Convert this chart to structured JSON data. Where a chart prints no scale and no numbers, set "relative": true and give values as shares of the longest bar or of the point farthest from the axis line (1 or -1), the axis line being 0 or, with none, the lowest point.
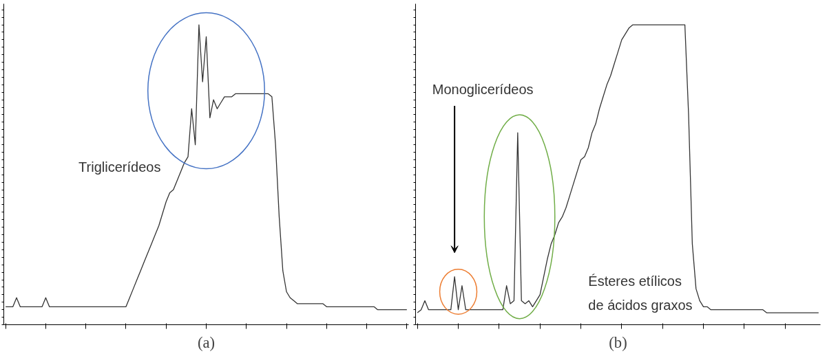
{
  "chart_data": [
    {
      "type": "line",
      "title": "(a)",
      "relative": true,
      "grid": false,
      "categories": [
        null,
        null,
        null,
        null,
        null,
        null,
        null,
        null,
        null,
        null,
        null,
        null,
        null,
        null,
        null,
        null,
        null,
        null,
        null,
        null,
        null,
        null,
        null,
        null,
        null,
        null,
        null,
        null,
        null,
        null,
        null,
        null,
        null,
        null,
        null,
        null,
        null,
        null,
        null,
        null,
        null,
        null,
        null,
        null,
        null,
        null,
        null,
        null,
        null,
        null,
        null,
        null,
        null,
        null,
        null,
        null,
        null,
        null,
        null,
        null,
        null,
        null,
        null,
        null,
        null,
        null,
        null,
        null,
        null,
        null,
        null,
        null,
        null,
        null,
        null,
        null,
        null,
        null,
        null,
        null,
        null,
        null,
        null,
        null,
        null,
        null,
        null,
        null,
        null,
        null,
        null,
        null,
        null,
        null,
        null,
        null,
        null,
        null,
        null,
        null,
        null,
        null,
        null,
        null,
        null,
        null,
        null,
        null,
        null,
        null,
        null
      ],
      "series": [
        {
          "color": "#333333",
          "values": [
            0.06,
            0.06,
            0.06,
            0.09,
            0.06,
            0.06,
            0.06,
            0.06,
            0.06,
            0.06,
            0.06,
            0.09,
            0.06,
            0.06,
            0.06,
            0.06,
            0.06,
            0.06,
            0.06,
            0.06,
            0.06,
            0.06,
            0.06,
            0.06,
            0.06,
            0.06,
            0.06,
            0.06,
            0.06,
            0.06,
            0.06,
            0.06,
            0.06,
            0.06,
            0.09,
            0.12,
            0.15,
            0.18,
            0.21,
            0.24,
            0.27,
            0.3,
            0.33,
            0.37,
            0.41,
            0.44,
            0.45,
            0.48,
            0.51,
            0.54,
            0.56,
            0.72,
            0.6,
            1.0,
            0.81,
            0.96,
            0.69,
            0.75,
            0.72,
            0.74,
            0.76,
            0.76,
            0.76,
            0.77,
            0.77,
            0.77,
            0.77,
            0.77,
            0.77,
            0.77,
            0.77,
            0.77,
            0.77,
            0.76,
            0.6,
            0.36,
            0.18,
            0.11,
            0.09,
            0.08,
            0.07,
            0.07,
            0.07,
            0.07,
            0.07,
            0.07,
            0.07,
            0.07,
            0.06,
            0.06,
            0.06,
            0.06,
            0.06,
            0.06,
            0.06,
            0.06,
            0.06,
            0.06,
            0.06,
            0.06,
            0.06,
            0.06,
            0.05,
            0.05,
            0.05,
            0.05,
            0.05,
            0.05,
            0.05,
            0.05,
            0.05
          ]
        }
      ],
      "annotations": [
        "Triglicerídeos"
      ]
    },
    {
      "type": "line",
      "title": "(b)",
      "relative": true,
      "grid": false,
      "categories": [
        null,
        null,
        null,
        null,
        null,
        null,
        null,
        null,
        null,
        null,
        null,
        null,
        null,
        null,
        null,
        null,
        null,
        null,
        null,
        null,
        null,
        null,
        null,
        null,
        null,
        null,
        null,
        null,
        null,
        null,
        null,
        null,
        null,
        null,
        null,
        null,
        null,
        null,
        null,
        null,
        null,
        null,
        null,
        null,
        null,
        null,
        null,
        null,
        null,
        null,
        null,
        null,
        null,
        null,
        null,
        null,
        null,
        null,
        null,
        null,
        null,
        null,
        null,
        null,
        null,
        null,
        null,
        null,
        null,
        null,
        null,
        null,
        null,
        null,
        null,
        null,
        null,
        null,
        null,
        null,
        null,
        null,
        null,
        null,
        null,
        null,
        null,
        null,
        null,
        null,
        null,
        null,
        null,
        null,
        null,
        null,
        null,
        null,
        null,
        null,
        null,
        null,
        null,
        null,
        null,
        null,
        null,
        null,
        null
      ],
      "series": [
        {
          "color": "#333333",
          "values": [
            0.04,
            0.05,
            0.08,
            0.05,
            0.05,
            0.05,
            0.05,
            0.05,
            0.05,
            0.05,
            0.16,
            0.05,
            0.13,
            0.05,
            0.05,
            0.05,
            0.05,
            0.05,
            0.05,
            0.05,
            0.05,
            0.05,
            0.05,
            0.05,
            0.13,
            0.07,
            0.08,
            0.64,
            0.08,
            0.07,
            0.08,
            0.06,
            0.08,
            0.1,
            0.16,
            0.22,
            0.27,
            0.3,
            0.34,
            0.36,
            0.39,
            0.43,
            0.47,
            0.51,
            0.55,
            0.56,
            0.59,
            0.64,
            0.67,
            0.72,
            0.76,
            0.8,
            0.83,
            0.87,
            0.91,
            0.95,
            0.97,
            0.99,
            1.0,
            1.0,
            1.0,
            1.0,
            1.0,
            1.0,
            1.0,
            1.0,
            1.0,
            1.0,
            1.0,
            1.0,
            1.0,
            1.0,
            1.0,
            0.7,
            0.27,
            0.12,
            0.08,
            0.06,
            0.06,
            0.05,
            0.05,
            0.05,
            0.05,
            0.05,
            0.05,
            0.05,
            0.05,
            0.05,
            0.05,
            0.05,
            0.05,
            0.05,
            0.05,
            0.05,
            0.04,
            0.04,
            0.04,
            0.04,
            0.04,
            0.04,
            0.04,
            0.04,
            0.04,
            0.04,
            0.04,
            0.04,
            0.04,
            0.04,
            0.04
          ]
        }
      ],
      "annotations": [
        "Monoglicerídeos",
        "Ésteres etílicos de ácidos graxos"
      ]
    }
  ]
}
